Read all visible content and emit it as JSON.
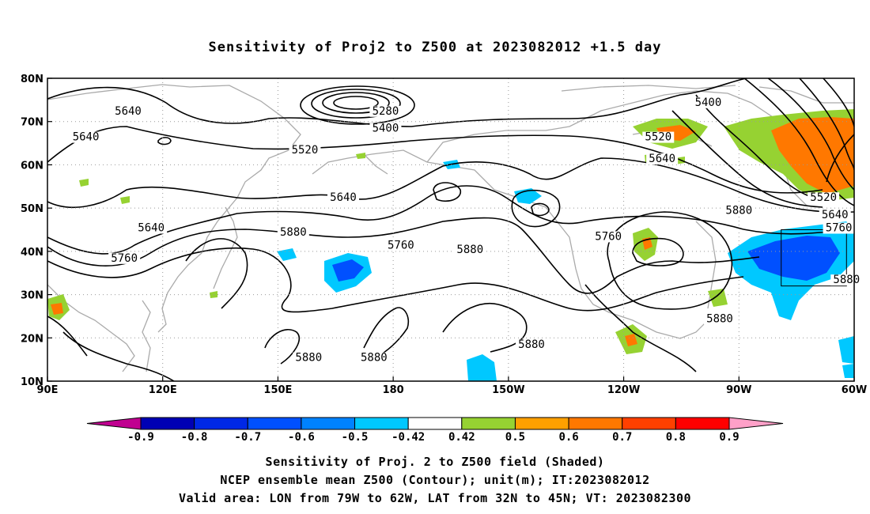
{
  "title": "Sensitivity of Proj2 to Z500 at 2023082012 +1.5 day",
  "map": {
    "lon_range": [
      90,
      300
    ],
    "lat_range": [
      10,
      80
    ],
    "x_ticks": [
      "90E",
      "120E",
      "150E",
      "180",
      "150W",
      "120W",
      "90W",
      "60W"
    ],
    "x_tick_lons": [
      90,
      120,
      150,
      180,
      210,
      240,
      270,
      300
    ],
    "y_ticks": [
      "80N",
      "70N",
      "60N",
      "50N",
      "40N",
      "30N",
      "20N",
      "10N"
    ],
    "y_tick_lats": [
      80,
      70,
      60,
      50,
      40,
      30,
      20,
      10
    ],
    "gridlines": "dotted",
    "contour_labels": [
      {
        "text": "5640",
        "lon": 111,
        "lat": 72
      },
      {
        "text": "5640",
        "lon": 100,
        "lat": 66
      },
      {
        "text": "5280",
        "lon": 178,
        "lat": 72
      },
      {
        "text": "5400",
        "lon": 178,
        "lat": 68
      },
      {
        "text": "5520",
        "lon": 157,
        "lat": 63
      },
      {
        "text": "5400",
        "lon": 262,
        "lat": 74
      },
      {
        "text": "5520",
        "lon": 249,
        "lat": 66
      },
      {
        "text": "5640",
        "lon": 250,
        "lat": 61
      },
      {
        "text": "5640",
        "lon": 167,
        "lat": 52
      },
      {
        "text": "5640",
        "lon": 117,
        "lat": 45
      },
      {
        "text": "5760",
        "lon": 110,
        "lat": 38
      },
      {
        "text": "5880",
        "lon": 154,
        "lat": 44
      },
      {
        "text": "5760",
        "lon": 182,
        "lat": 41
      },
      {
        "text": "5880",
        "lon": 200,
        "lat": 40
      },
      {
        "text": "5760",
        "lon": 236,
        "lat": 43
      },
      {
        "text": "5880",
        "lon": 270,
        "lat": 49
      },
      {
        "text": "5520",
        "lon": 292,
        "lat": 52
      },
      {
        "text": "5640",
        "lon": 295,
        "lat": 48
      },
      {
        "text": "5760",
        "lon": 296,
        "lat": 45
      },
      {
        "text": "5880",
        "lon": 298,
        "lat": 33
      },
      {
        "text": "5880",
        "lon": 265,
        "lat": 24
      },
      {
        "text": "5880",
        "lon": 216,
        "lat": 18
      },
      {
        "text": "5880",
        "lon": 175,
        "lat": 15
      },
      {
        "text": "5880",
        "lon": 158,
        "lat": 15
      }
    ],
    "valid_box": {
      "lon1": 281,
      "lon2": 298,
      "lat1": 32,
      "lat2": 45
    }
  },
  "colorbar": {
    "labels": [
      "-0.9",
      "-0.8",
      "-0.7",
      "-0.6",
      "-0.5",
      "-0.42",
      "0.42",
      "0.5",
      "0.6",
      "0.7",
      "0.8",
      "0.9"
    ],
    "colors": [
      "#0000b4",
      "#0028e6",
      "#0050ff",
      "#0082ff",
      "#00c8ff",
      "#ffffff",
      "#96d232",
      "#ffa000",
      "#ff7800",
      "#ff4000",
      "#ff0000"
    ],
    "low_color": "#c00090",
    "high_color": "#ffa0c8"
  },
  "captions": {
    "line1": "Sensitivity of Proj. 2 to Z500 field (Shaded)",
    "line2": "NCEP ensemble mean Z500 (Contour); unit(m); IT:2023082012",
    "line3": "Valid area: LON from 79W to 62W, LAT from 32N to 45N; VT: 2023082300"
  }
}
